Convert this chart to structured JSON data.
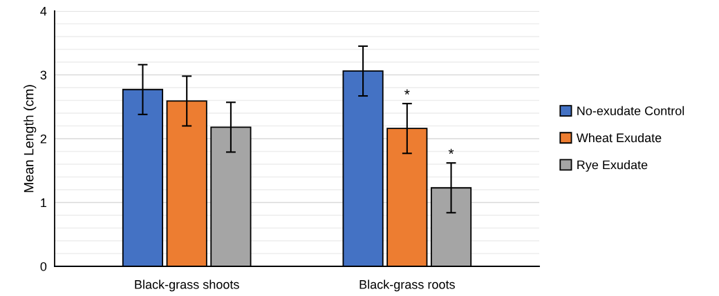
{
  "chart_data": {
    "type": "bar",
    "ylabel": "Mean Length (cm)",
    "categories": [
      "Black-grass shoots",
      "Black-grass roots"
    ],
    "series": [
      {
        "name": "No-exudate Control",
        "color": "#4472c4",
        "values": [
          2.77,
          3.06
        ],
        "errors": [
          0.39,
          0.39
        ]
      },
      {
        "name": "Wheat Exudate",
        "color": "#ed7d31",
        "values": [
          2.59,
          2.16
        ],
        "errors": [
          0.39,
          0.39
        ],
        "value_labels": [
          null,
          "*"
        ]
      },
      {
        "name": "Rye Exudate",
        "color": "#a5a5a5",
        "values": [
          2.18,
          1.23
        ],
        "errors": [
          0.39,
          0.39
        ],
        "value_labels": [
          null,
          "*"
        ]
      }
    ],
    "ylim": [
      0,
      4
    ],
    "yticks": [
      0,
      {
        "value": 0.2,
        "label": null
      },
      {
        "value": 0.4,
        "label": null
      },
      {
        "value": 0.6,
        "label": null
      },
      {
        "value": 0.8,
        "label": null
      },
      1,
      {
        "value": 1.2,
        "label": null
      },
      {
        "value": 1.4,
        "label": null
      },
      {
        "value": 1.6,
        "label": null
      },
      {
        "value": 1.8,
        "label": null
      },
      2,
      {
        "value": 2.2,
        "label": null
      },
      {
        "value": 2.4,
        "label": null
      },
      {
        "value": 2.6,
        "label": null
      },
      {
        "value": 2.8,
        "label": null
      },
      3,
      {
        "value": 3.2,
        "label": null
      },
      {
        "value": 3.4,
        "label": null
      },
      {
        "value": 3.6,
        "label": null
      },
      {
        "value": 3.8,
        "label": null
      },
      4
    ],
    "grid": "y",
    "legend": "right"
  }
}
